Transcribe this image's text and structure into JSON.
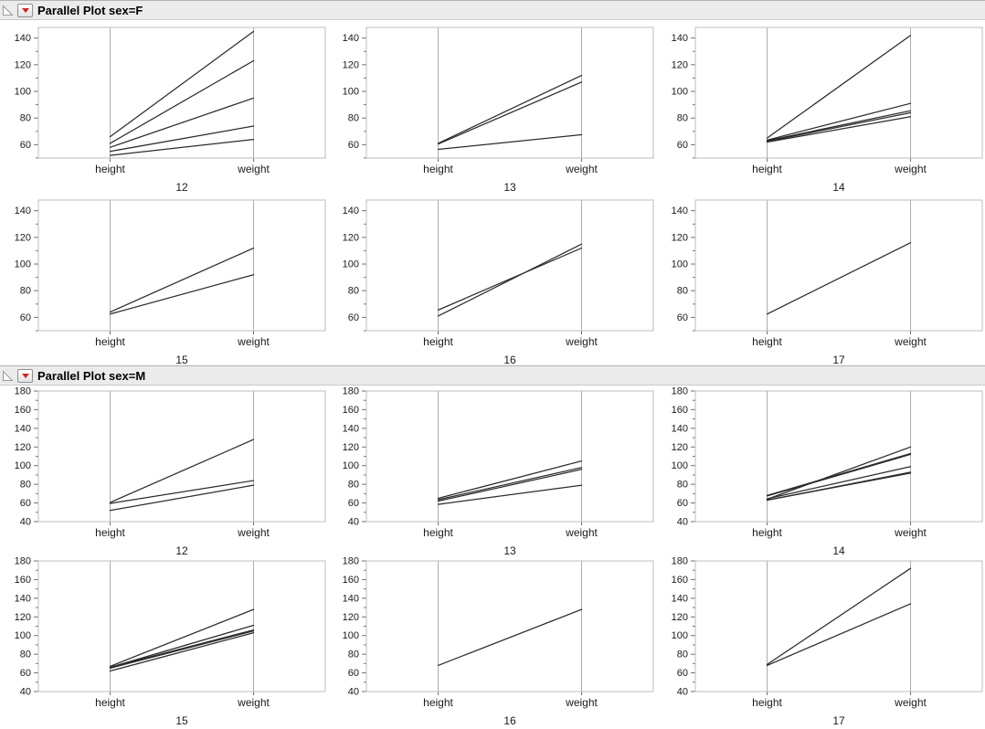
{
  "colors": {
    "data_line": "#2b2b2b",
    "frame_border": "#bdbdbd",
    "inner_axis_line": "#adadad",
    "tick_mark": "#6f6f6f",
    "text": "#1a1a1a",
    "header_bg": "#ebebeb",
    "accent_red": "#d22222"
  },
  "icons": {
    "disclosure": "disclosure-triangle-icon",
    "menu": "red-dropdown-triangle-icon"
  },
  "chart_data": [
    {
      "type": "line",
      "title": "Parallel Plot sex=F",
      "x_categories": [
        "height",
        "weight"
      ],
      "y_axis": {
        "min": 50,
        "max": 148,
        "major_ticks": [
          60,
          80,
          100,
          120,
          140
        ],
        "minor_tick_step": 10
      },
      "legend": "none",
      "grid": "off",
      "groups": [
        {
          "label": "12",
          "lines": [
            [
              66,
              145
            ],
            [
              61,
              123
            ],
            [
              58,
              95
            ],
            [
              55,
              74
            ],
            [
              52,
              64
            ]
          ]
        },
        {
          "label": "13",
          "lines": [
            [
              61,
              112
            ],
            [
              60.5,
              107
            ],
            [
              56.5,
              67.5
            ]
          ]
        },
        {
          "label": "14",
          "lines": [
            [
              65,
              142
            ],
            [
              63.5,
              91
            ],
            [
              63,
              85.5
            ],
            [
              62.5,
              84
            ],
            [
              62,
              81
            ]
          ]
        },
        {
          "label": "15",
          "lines": [
            [
              64,
              112
            ],
            [
              62.5,
              92
            ]
          ]
        },
        {
          "label": "16",
          "lines": [
            [
              65.5,
              112
            ],
            [
              61,
              115
            ]
          ]
        },
        {
          "label": "17",
          "lines": [
            [
              62.5,
              116
            ]
          ]
        }
      ]
    },
    {
      "type": "line",
      "title": "Parallel Plot sex=M",
      "x_categories": [
        "height",
        "weight"
      ],
      "y_axis": {
        "min": 40,
        "max": 180,
        "major_ticks": [
          40,
          60,
          80,
          100,
          120,
          140,
          160,
          180
        ],
        "minor_tick_step": 10
      },
      "legend": "none",
      "grid": "off",
      "groups": [
        {
          "label": "12",
          "lines": [
            [
              60.5,
              128
            ],
            [
              59.5,
              84
            ],
            [
              52,
              79
            ]
          ]
        },
        {
          "label": "13",
          "lines": [
            [
              65,
              105
            ],
            [
              63.5,
              98
            ],
            [
              62,
              96
            ],
            [
              58.5,
              79
            ]
          ]
        },
        {
          "label": "14",
          "lines": [
            [
              64,
              120
            ],
            [
              68,
              113
            ],
            [
              67.5,
              112
            ],
            [
              64.5,
              99
            ],
            [
              63,
              93
            ],
            [
              63,
              92
            ]
          ]
        },
        {
          "label": "15",
          "lines": [
            [
              67,
              128
            ],
            [
              66,
              111
            ],
            [
              66,
              106
            ],
            [
              65,
              105
            ],
            [
              62,
              103
            ]
          ]
        },
        {
          "label": "16",
          "lines": [
            [
              68,
              128
            ]
          ]
        },
        {
          "label": "17",
          "lines": [
            [
              69,
              172
            ],
            [
              68,
              134
            ]
          ]
        }
      ]
    }
  ]
}
